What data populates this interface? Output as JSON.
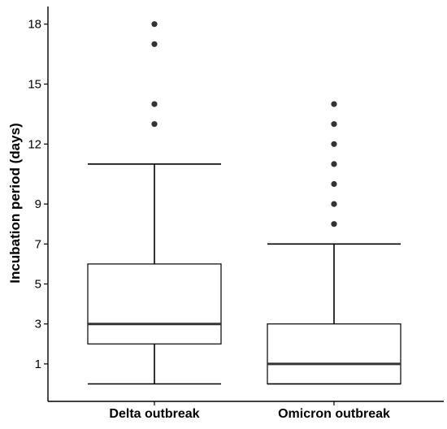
{
  "chart_data": {
    "type": "boxplot",
    "title": "",
    "xlabel": "",
    "ylabel": "Incubation period (days)",
    "ylim": [
      -1,
      19
    ],
    "yticks": [
      1,
      3,
      5,
      7,
      9,
      12,
      15,
      18
    ],
    "grid": false,
    "legend": "none",
    "categories": [
      "Delta outbreak",
      "Omicron outbreak"
    ],
    "boxes": [
      {
        "category": "Delta outbreak",
        "whisker_low": 0,
        "q1": 2,
        "median": 3,
        "q3": 6,
        "whisker_high": 11,
        "outliers": [
          13,
          14,
          17,
          18
        ]
      },
      {
        "category": "Omicron outbreak",
        "whisker_low": 0,
        "q1": 0,
        "median": 1,
        "q3": 3,
        "whisker_high": 7,
        "outliers": [
          8,
          9,
          10,
          11,
          12,
          13,
          14
        ]
      }
    ],
    "colors": {
      "box_line": "#000000",
      "median_line": "#333333",
      "outlier": "#333333",
      "box_fill": "#ffffff"
    }
  }
}
